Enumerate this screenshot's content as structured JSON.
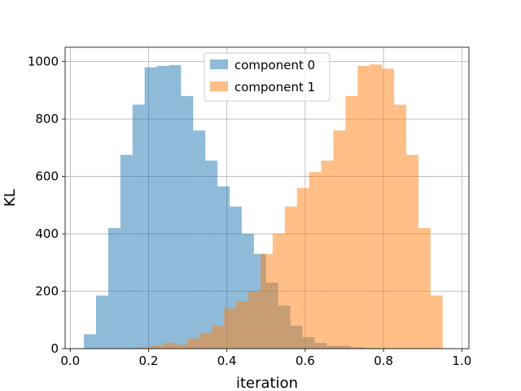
{
  "chart_data": {
    "type": "bar",
    "subtype": "overlapping-histogram",
    "title": "",
    "xlabel": "iteration",
    "ylabel": "KL",
    "xlim": [
      0.0,
      1.0
    ],
    "ylim": [
      0,
      1050
    ],
    "xticks": [
      "0.0",
      "0.2",
      "0.4",
      "0.6",
      "0.8",
      "1.0"
    ],
    "yticks": [
      "0",
      "200",
      "400",
      "600",
      "800",
      "1000"
    ],
    "grid": true,
    "legend_position": "upper center",
    "bin_width": 0.031,
    "series": [
      {
        "name": "component 0",
        "color": "#1f77b4",
        "opacity": 0.5,
        "bin_starts": [
          0.035,
          0.066,
          0.097,
          0.128,
          0.159,
          0.19,
          0.221,
          0.252,
          0.283,
          0.314,
          0.345,
          0.376,
          0.407,
          0.438,
          0.469,
          0.5,
          0.531,
          0.562,
          0.593,
          0.624,
          0.655,
          0.686,
          0.717,
          0.748,
          0.779
        ],
        "values": [
          50,
          185,
          420,
          675,
          850,
          980,
          985,
          988,
          880,
          760,
          655,
          565,
          495,
          400,
          330,
          230,
          150,
          80,
          40,
          20,
          10,
          10,
          5,
          3,
          2
        ]
      },
      {
        "name": "component 1",
        "color": "#ff7f0e",
        "opacity": 0.5,
        "bin_starts": [
          0.176,
          0.207,
          0.238,
          0.269,
          0.3,
          0.331,
          0.362,
          0.393,
          0.424,
          0.455,
          0.486,
          0.517,
          0.548,
          0.579,
          0.61,
          0.641,
          0.672,
          0.703,
          0.734,
          0.765,
          0.796,
          0.827,
          0.858,
          0.889,
          0.92
        ],
        "values": [
          5,
          10,
          20,
          15,
          35,
          55,
          80,
          140,
          165,
          200,
          330,
          400,
          495,
          560,
          615,
          655,
          760,
          880,
          985,
          990,
          975,
          850,
          675,
          420,
          185
        ]
      }
    ]
  }
}
